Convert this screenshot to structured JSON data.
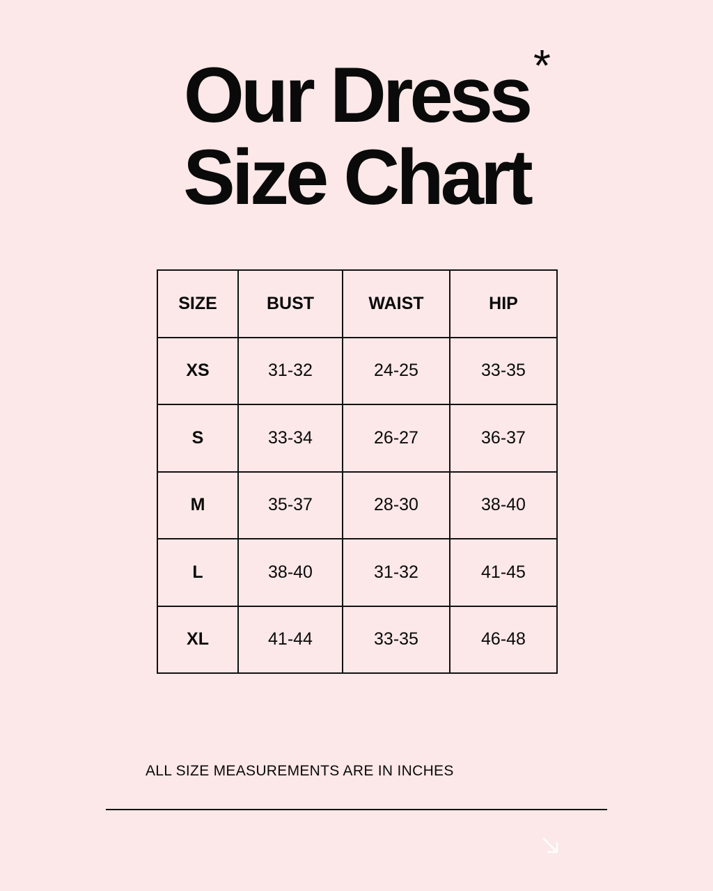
{
  "title": {
    "line1": "Our Dress",
    "line2": "Size Chart",
    "asterisk": "*"
  },
  "table": {
    "headers": [
      "SIZE",
      "BUST",
      "WAIST",
      "HIP"
    ],
    "rows": [
      [
        "XS",
        "31-32",
        "24-25",
        "33-35"
      ],
      [
        "S",
        "33-34",
        "26-27",
        "36-37"
      ],
      [
        "M",
        "35-37",
        "28-30",
        "38-40"
      ],
      [
        "L",
        "38-40",
        "31-32",
        "41-45"
      ],
      [
        "XL",
        "41-44",
        "33-35",
        "46-48"
      ]
    ]
  },
  "note": "ALL SIZE MEASUREMENTS ARE IN INCHES",
  "icons": {
    "corner": "arrow-down-right-icon"
  },
  "colors": {
    "background": "#fce8e8",
    "text": "#0a0a0a",
    "arrow": "#ffffff"
  }
}
